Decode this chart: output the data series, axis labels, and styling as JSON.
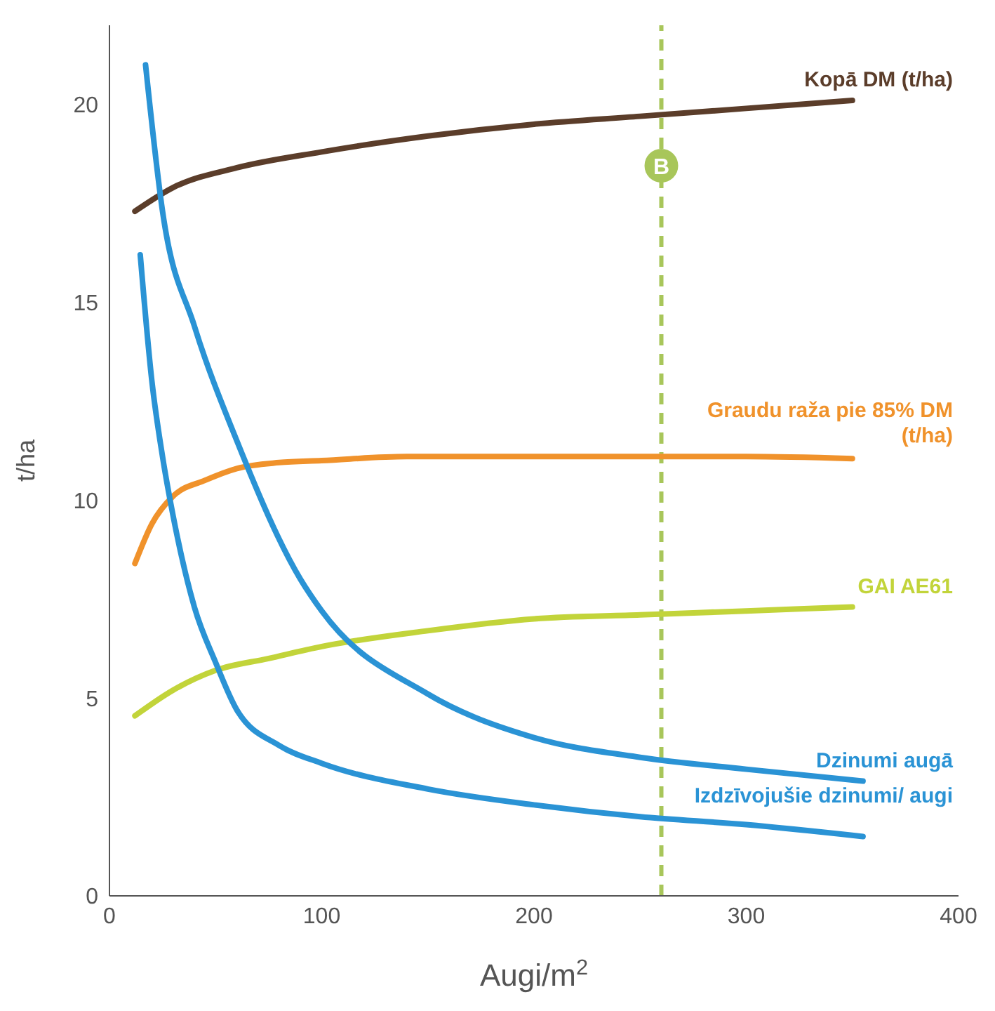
{
  "chart_data": {
    "type": "line",
    "xlabel": "Augi/m$^{2}$",
    "ylabel": "t/ha",
    "xlim": [
      0,
      400
    ],
    "xticks": [
      0,
      100,
      200,
      300,
      400
    ],
    "ylim": [
      0,
      22
    ],
    "yticks": [
      0,
      5,
      10,
      15,
      20
    ],
    "marker": "none",
    "line_style": "solid",
    "ref_lines": [
      {
        "axis": "x",
        "value": 260,
        "label": "B",
        "color": "#a8c65a",
        "line_style": "dashed"
      }
    ],
    "series": [
      {
        "name": "Kopā DM (t/ha)",
        "color": "#5b3d2a",
        "x": [
          12,
          30,
          60,
          100,
          150,
          200,
          250,
          300,
          350
        ],
        "values": [
          17.3,
          17.9,
          18.4,
          18.8,
          19.2,
          19.5,
          19.7,
          19.9,
          20.1
        ]
      },
      {
        "name": "Graudu raža pie 85% DM (t/ha)",
        "color": "#f0922b",
        "x": [
          12,
          20,
          30,
          45,
          60,
          80,
          100,
          140,
          200,
          250,
          300,
          350
        ],
        "values": [
          8.4,
          9.4,
          10.1,
          10.5,
          10.8,
          10.95,
          11.0,
          11.1,
          11.1,
          11.1,
          11.1,
          11.05
        ]
      },
      {
        "name": "GAI AE61",
        "color": "#c2d43a",
        "x": [
          12,
          30,
          50,
          75,
          100,
          150,
          200,
          250,
          300,
          350
        ],
        "values": [
          4.55,
          5.2,
          5.7,
          6.0,
          6.3,
          6.7,
          7.0,
          7.1,
          7.2,
          7.3
        ]
      },
      {
        "name": "Dzinumi augā",
        "color": "#2a93d5",
        "x": [
          17,
          25,
          40,
          60,
          90,
          100,
          150,
          200,
          250,
          300,
          355
        ],
        "values": [
          21.0,
          17.3,
          14.4,
          11.5,
          8.0,
          7.2,
          5.1,
          4.0,
          3.5,
          3.2,
          2.9
        ]
      },
      {
        "name": "Izdzīvojušie dzinumi/ augi",
        "color": "#2a93d5",
        "x": [
          14.5,
          20,
          25,
          30,
          40,
          50,
          60,
          80,
          100,
          150,
          200,
          250,
          300,
          355
        ],
        "values": [
          16.2,
          13.0,
          11.1,
          9.6,
          7.3,
          5.9,
          4.7,
          3.8,
          3.35,
          2.7,
          2.3,
          2.0,
          1.8,
          1.5
        ]
      }
    ]
  }
}
